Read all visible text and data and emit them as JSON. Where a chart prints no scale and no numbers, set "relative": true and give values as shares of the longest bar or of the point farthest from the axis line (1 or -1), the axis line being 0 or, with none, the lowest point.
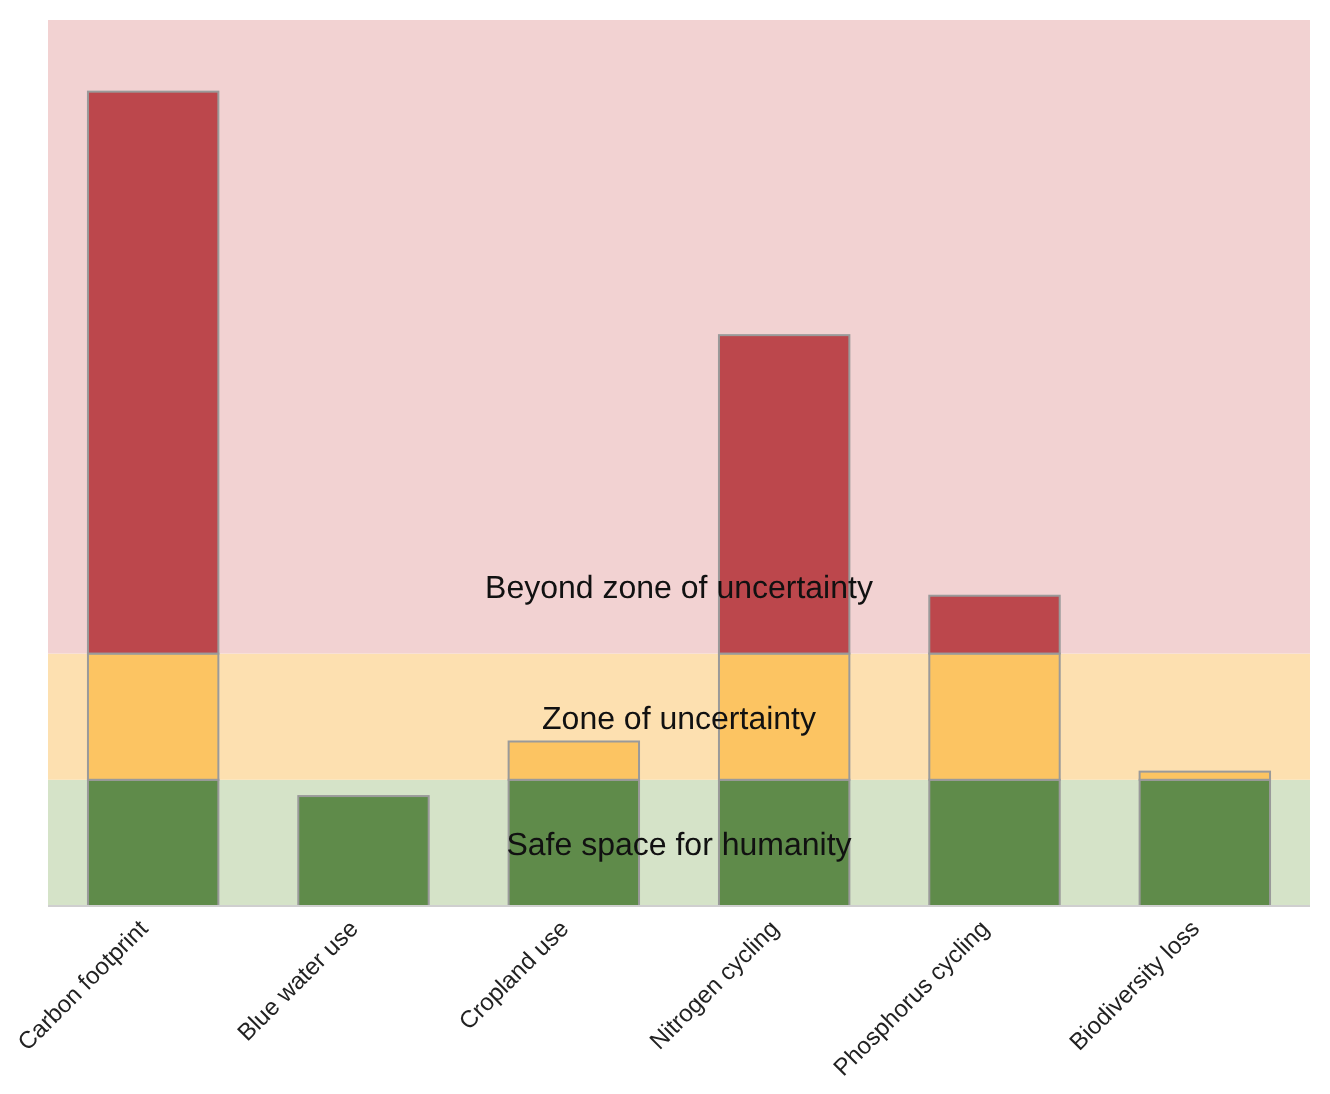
{
  "chart_data": {
    "type": "bar",
    "stacked": true,
    "relative": true,
    "categories": [
      "Carbon footprint",
      "Blue water use",
      "Cropland use",
      "Nitrogen cycling",
      "Phosphorus cycling",
      "Biodiversity loss"
    ],
    "series": [
      {
        "color": "#5f8b4a",
        "values": [
          0.155,
          0.135,
          0.155,
          0.155,
          0.155,
          0.155
        ]
      },
      {
        "color": "#fcc462",
        "values": [
          0.155,
          null,
          0.047,
          0.155,
          0.155,
          0.01
        ]
      },
      {
        "color": "#bc474c",
        "values": [
          0.69,
          null,
          null,
          0.391,
          0.071,
          null
        ]
      }
    ],
    "bands": [
      {
        "axis": "y",
        "from": 0,
        "to": 0.155,
        "label": "Safe space for humanity",
        "color": "#d5e3c8"
      },
      {
        "axis": "y",
        "from": 0.155,
        "to": 0.31,
        "label": "Zone of uncertainty",
        "color": "#fde0b0"
      },
      {
        "axis": "y",
        "from": 0.31,
        "to": 1.088,
        "label": "Beyond zone of uncertainty",
        "color": "#f2d2d2"
      }
    ]
  }
}
